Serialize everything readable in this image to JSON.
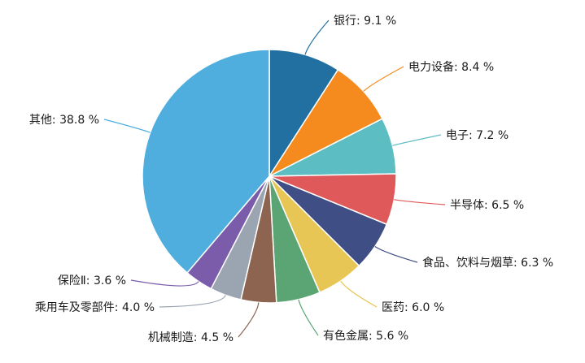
{
  "chart_data": {
    "type": "pie",
    "title": "",
    "start": "12 o'clock",
    "direction": "clockwise",
    "label_format": "{name}: {value} %",
    "slices": [
      {
        "name": "银行",
        "value": 9.1,
        "display": "银行: 9.1 %",
        "color": "#2270a2"
      },
      {
        "name": "电力设备",
        "value": 8.4,
        "display": "电力设备: 8.4 %",
        "color": "#f58b1f"
      },
      {
        "name": "电子",
        "value": 7.2,
        "display": "电子: 7.2 %",
        "color": "#5cbdc2"
      },
      {
        "name": "半导体",
        "value": 6.5,
        "display": "半导体: 6.5 %",
        "color": "#e0595a"
      },
      {
        "name": "食品、饮料与烟草",
        "value": 6.3,
        "display": "食品、饮料与烟草: 6.3 %",
        "color": "#3f4f85"
      },
      {
        "name": "医药",
        "value": 6.0,
        "display": "医药: 6.0 %",
        "color": "#e8c655"
      },
      {
        "name": "有色金属",
        "value": 5.6,
        "display": "有色金属: 5.6 %",
        "color": "#5ba575"
      },
      {
        "name": "机械制造",
        "value": 4.5,
        "display": "机械制造: 4.5 %",
        "color": "#8c6450"
      },
      {
        "name": "乘用车及零部件",
        "value": 4.0,
        "display": "乘用车及零部件: 4.0 %",
        "color": "#9aa5b1"
      },
      {
        "name": "保险Ⅱ",
        "value": 3.6,
        "display": "保险Ⅱ: 3.6 %",
        "color": "#7a5cab"
      },
      {
        "name": "其他",
        "value": 38.8,
        "display": "其他: 38.8 %",
        "color": "#4faede"
      }
    ]
  }
}
